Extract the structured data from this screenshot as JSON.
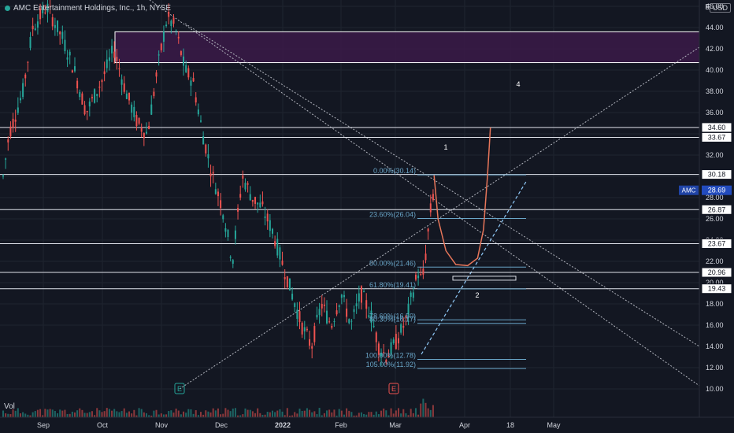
{
  "header": {
    "symbol_title": "AMC Entertainment Holdings, Inc., 1h, NYSE",
    "currency_button": "USD",
    "scale_button": "E"
  },
  "volume_label": "Vol",
  "colors": {
    "background": "#131722",
    "grid": "#1f2430",
    "up": "#26a69a",
    "down": "#ef5350",
    "fib": "#6aa6c8",
    "zone_fill": "#3b1a48",
    "projection": "#e8765a",
    "tick_text": "#d1d4dc"
  },
  "chart_data": {
    "type": "candlestick",
    "title": "AMC Entertainment Holdings, Inc., 1h, NYSE",
    "xaxis_ticks": [
      "Sep",
      "Oct",
      "Nov",
      "Dec",
      "2022",
      "Feb",
      "Mar",
      "Apr",
      "18",
      "May"
    ],
    "yaxis_ticks": [
      10.0,
      12.0,
      14.0,
      16.0,
      18.0,
      20.0,
      22.0,
      24.0,
      26.0,
      28.0,
      30.0,
      32.0,
      34.0,
      36.0,
      38.0,
      40.0,
      42.0,
      44.0,
      46.0
    ],
    "ylim": [
      10,
      46
    ],
    "grid": true,
    "current_price": {
      "label": "AMC",
      "value": 28.69
    },
    "horizontal_levels": [
      34.6,
      33.67,
      30.18,
      26.87,
      23.67,
      20.96,
      19.43
    ],
    "fibonacci": [
      {
        "label": "0.00%(30.14)",
        "value": 30.14
      },
      {
        "label": "23.60%(26.04)",
        "value": 26.04
      },
      {
        "label": "50.00%(21.46)",
        "value": 21.46
      },
      {
        "label": "61.80%(19.41)",
        "value": 19.41
      },
      {
        "label": "78.60%(16.50)",
        "value": 16.5
      },
      {
        "label": "80.30%(16.17)",
        "value": 16.17
      },
      {
        "label": "100.00%(12.78)",
        "value": 12.78
      },
      {
        "label": "105.00%(11.92)",
        "value": 11.92
      }
    ],
    "resistance_zone": {
      "low": 40.7,
      "high": 43.6
    },
    "wave_labels": [
      "1",
      "2",
      "4"
    ],
    "event_markers": [
      "E",
      "E"
    ],
    "price_path": [
      {
        "x": 0,
        "y": 30
      },
      {
        "x": 0.3,
        "y": 34
      },
      {
        "x": 1,
        "y": 38
      },
      {
        "x": 1.5,
        "y": 44
      },
      {
        "x": 2.2,
        "y": 46
      },
      {
        "x": 3,
        "y": 43
      },
      {
        "x": 3.6,
        "y": 40
      },
      {
        "x": 4.2,
        "y": 36
      },
      {
        "x": 5,
        "y": 39
      },
      {
        "x": 5.6,
        "y": 42
      },
      {
        "x": 6.2,
        "y": 38
      },
      {
        "x": 6.8,
        "y": 35
      },
      {
        "x": 7.3,
        "y": 34
      },
      {
        "x": 7.8,
        "y": 40
      },
      {
        "x": 8.3,
        "y": 45
      },
      {
        "x": 8.7,
        "y": 44
      },
      {
        "x": 9.2,
        "y": 40
      },
      {
        "x": 9.6,
        "y": 39
      },
      {
        "x": 10.1,
        "y": 34
      },
      {
        "x": 10.6,
        "y": 30
      },
      {
        "x": 11.1,
        "y": 27
      },
      {
        "x": 11.6,
        "y": 22
      },
      {
        "x": 12.1,
        "y": 30
      },
      {
        "x": 12.6,
        "y": 28
      },
      {
        "x": 13.1,
        "y": 27
      },
      {
        "x": 13.6,
        "y": 25
      },
      {
        "x": 14.1,
        "y": 22
      },
      {
        "x": 14.6,
        "y": 19
      },
      {
        "x": 15.1,
        "y": 16
      },
      {
        "x": 15.6,
        "y": 14
      },
      {
        "x": 16.1,
        "y": 18
      },
      {
        "x": 16.6,
        "y": 16
      },
      {
        "x": 17.1,
        "y": 19
      },
      {
        "x": 17.6,
        "y": 16
      },
      {
        "x": 18.1,
        "y": 19
      },
      {
        "x": 18.6,
        "y": 17
      },
      {
        "x": 19.0,
        "y": 14
      },
      {
        "x": 19.4,
        "y": 13
      },
      {
        "x": 19.9,
        "y": 14.5
      },
      {
        "x": 20.4,
        "y": 16.5
      },
      {
        "x": 20.7,
        "y": 19
      },
      {
        "x": 21.0,
        "y": 21
      },
      {
        "x": 21.2,
        "y": 20
      },
      {
        "x": 21.4,
        "y": 23
      },
      {
        "x": 21.6,
        "y": 26.5
      },
      {
        "x": 21.8,
        "y": 28.7
      }
    ],
    "projection_path": [
      {
        "x": 21.8,
        "y": 30.1
      },
      {
        "x": 22.0,
        "y": 26
      },
      {
        "x": 22.4,
        "y": 23
      },
      {
        "x": 22.9,
        "y": 21.7
      },
      {
        "x": 23.5,
        "y": 21.6
      },
      {
        "x": 24.0,
        "y": 22.3
      },
      {
        "x": 24.3,
        "y": 25
      },
      {
        "x": 24.5,
        "y": 30
      },
      {
        "x": 24.65,
        "y": 34.6
      }
    ]
  }
}
